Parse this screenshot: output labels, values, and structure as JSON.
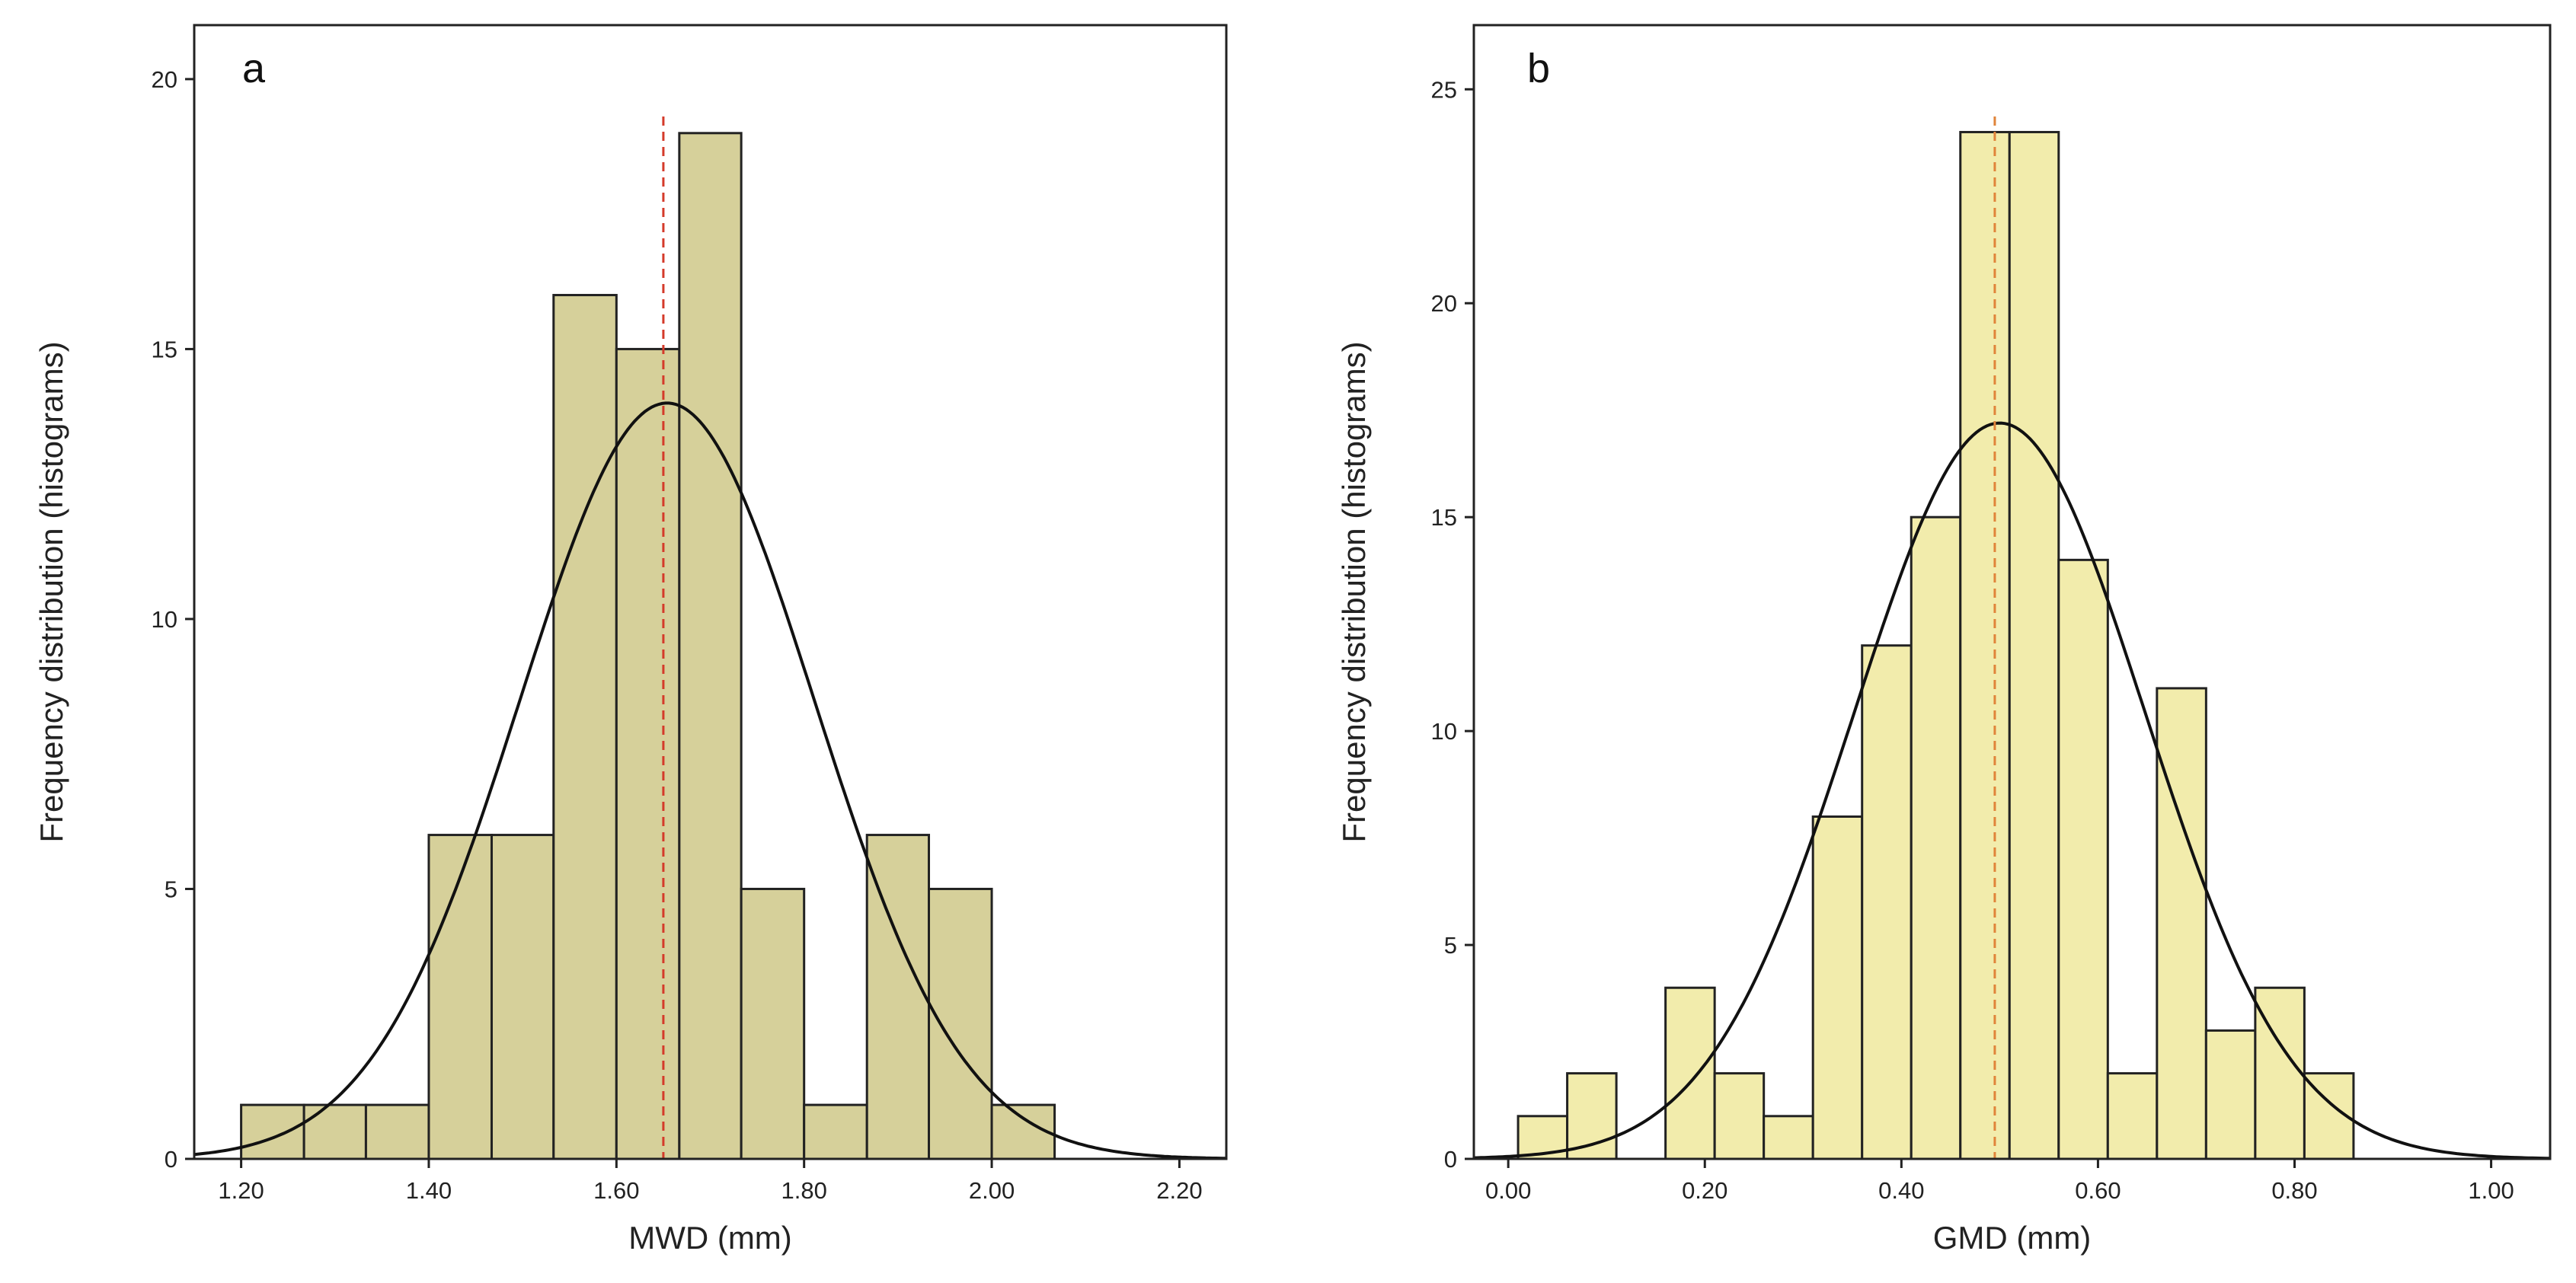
{
  "chart_data": [
    {
      "type": "bar",
      "panel_label": "a",
      "title": "",
      "xlabel": "MWD (mm)",
      "ylabel": "Frequency distribution (histograms)",
      "xlim": [
        1.15,
        2.25
      ],
      "ylim": [
        0,
        21
      ],
      "xticks": [
        1.2,
        1.4,
        1.6,
        1.8,
        2.0,
        2.2
      ],
      "xtick_labels": [
        "1.20",
        "1.40",
        "1.60",
        "1.80",
        "2.00",
        "2.20"
      ],
      "yticks": [
        0,
        5,
        10,
        15,
        20
      ],
      "ytick_labels": [
        "0",
        "5",
        "10",
        "15",
        "20"
      ],
      "bin_edges": [
        1.2,
        1.267,
        1.333,
        1.4,
        1.467,
        1.533,
        1.6,
        1.667,
        1.733,
        1.8,
        1.867,
        1.933,
        2.0,
        2.067
      ],
      "values": [
        1,
        1,
        1,
        6,
        6,
        16,
        15,
        19,
        5,
        1,
        6,
        5,
        1
      ],
      "bar_color": "#d6d09a",
      "bar_edge_color": "#222222",
      "normal_curve": {
        "mean": 1.654,
        "sd": 0.157,
        "peak": 14
      },
      "mean_line": {
        "x": 1.65,
        "color": "#d43a2a",
        "style": "dashed"
      },
      "grid": false
    },
    {
      "type": "bar",
      "panel_label": "b",
      "title": "",
      "xlabel": "GMD (mm)",
      "ylabel": "Frequency distribution (histograms)",
      "xlim": [
        -0.035,
        1.06
      ],
      "ylim": [
        0,
        26.5
      ],
      "xticks": [
        0.0,
        0.2,
        0.4,
        0.6,
        0.8,
        1.0
      ],
      "xtick_labels": [
        "0.00",
        "0.20",
        "0.40",
        "0.60",
        "0.80",
        "1.00"
      ],
      "yticks": [
        0,
        5,
        10,
        15,
        20,
        25
      ],
      "ytick_labels": [
        "0",
        "5",
        "10",
        "15",
        "20",
        "25"
      ],
      "bin_edges": [
        0.01,
        0.06,
        0.11,
        0.16,
        0.21,
        0.26,
        0.31,
        0.36,
        0.41,
        0.46,
        0.51,
        0.56,
        0.61,
        0.66,
        0.71,
        0.76,
        0.81,
        0.86
      ],
      "values": [
        1,
        2,
        0,
        4,
        2,
        1,
        8,
        12,
        15,
        24,
        24,
        14,
        2,
        11,
        3,
        4,
        2
      ],
      "bar_color": "#f2ecac",
      "bar_edge_color": "#222222",
      "normal_curve": {
        "mean": 0.5,
        "sd": 0.148,
        "peak": 17.2
      },
      "mean_line": {
        "x": 0.495,
        "color": "#e0843a",
        "style": "dashed"
      },
      "grid": false
    }
  ]
}
